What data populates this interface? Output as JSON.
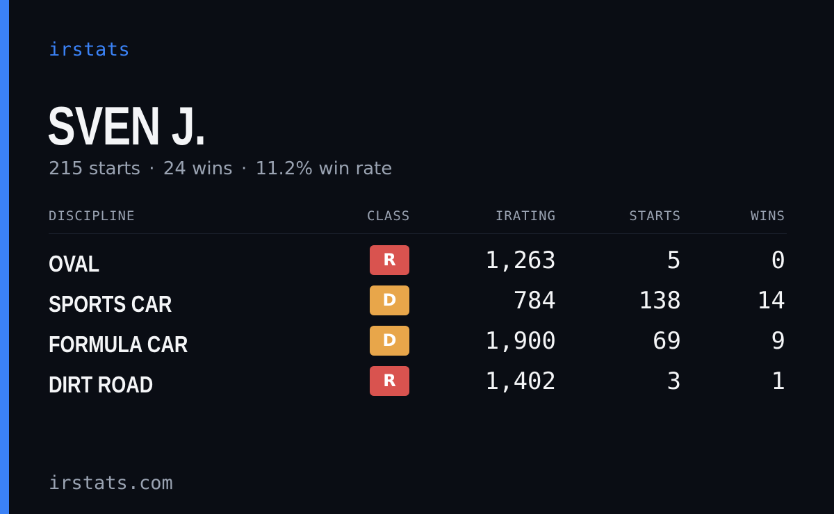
{
  "brand": "irstats",
  "driver": {
    "name": "SVEN J.",
    "starts_text": "215 starts",
    "wins_text": "24 wins",
    "winrate_text": "11.2% win rate",
    "separator": "·"
  },
  "table": {
    "headers": {
      "discipline": "DISCIPLINE",
      "class": "CLASS",
      "irating": "IRATING",
      "starts": "STARTS",
      "wins": "WINS"
    },
    "rows": [
      {
        "discipline": "OVAL",
        "class": "R",
        "class_color": "#d9534f",
        "irating": "1,263",
        "starts": "5",
        "wins": "0"
      },
      {
        "discipline": "SPORTS CAR",
        "class": "D",
        "class_color": "#e8a64a",
        "irating": "784",
        "starts": "138",
        "wins": "14"
      },
      {
        "discipline": "FORMULA CAR",
        "class": "D",
        "class_color": "#e8a64a",
        "irating": "1,900",
        "starts": "69",
        "wins": "9"
      },
      {
        "discipline": "DIRT ROAD",
        "class": "R",
        "class_color": "#d9534f",
        "irating": "1,402",
        "starts": "3",
        "wins": "1"
      }
    ]
  },
  "footer": {
    "url": "irstats.com"
  },
  "colors": {
    "accent": "#3b82f6",
    "background": "#0a0d14",
    "muted": "#9aa3b2",
    "text": "#f4f5f7"
  }
}
